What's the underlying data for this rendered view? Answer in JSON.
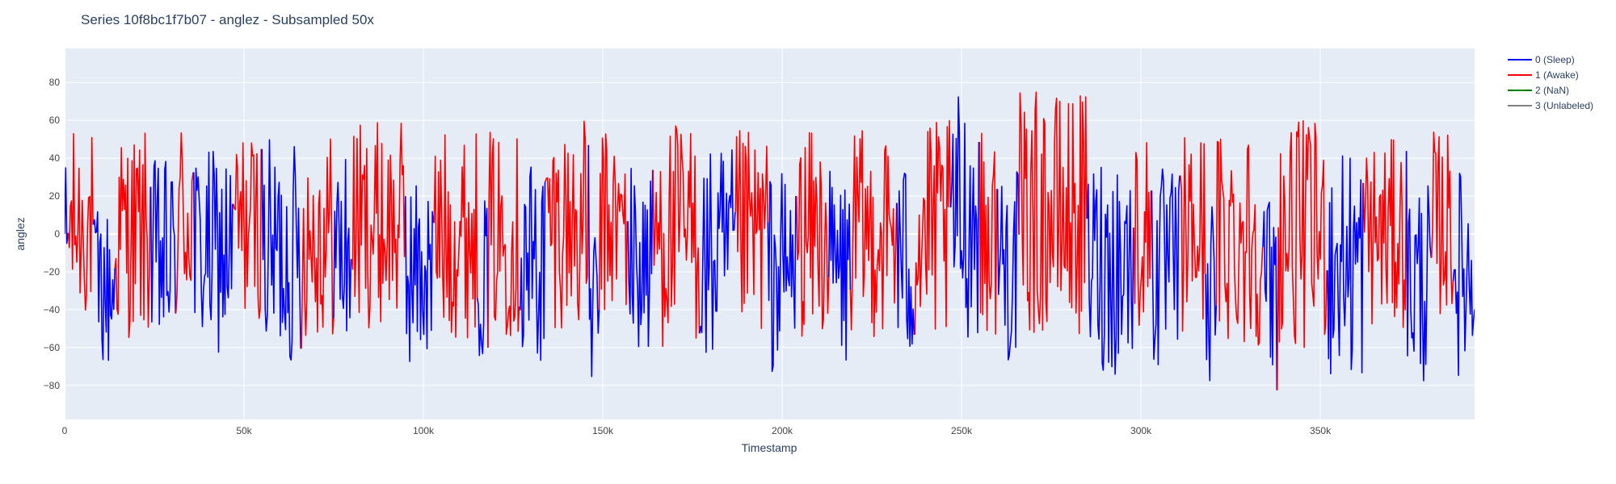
{
  "chart_data": {
    "type": "line",
    "title": "Series 10f8bc1f7b07 - anglez - Subsampled 50x",
    "xlabel": "Timestamp",
    "ylabel": "anglez",
    "xlim": [
      0,
      393000
    ],
    "ylim": [
      -98,
      98
    ],
    "x_ticks": [
      {
        "value": 0,
        "label": "0"
      },
      {
        "value": 50000,
        "label": "50k"
      },
      {
        "value": 100000,
        "label": "100k"
      },
      {
        "value": 150000,
        "label": "150k"
      },
      {
        "value": 200000,
        "label": "200k"
      },
      {
        "value": 250000,
        "label": "250k"
      },
      {
        "value": 300000,
        "label": "300k"
      },
      {
        "value": 350000,
        "label": "350k"
      }
    ],
    "y_ticks": [
      {
        "value": 80,
        "label": "80"
      },
      {
        "value": 60,
        "label": "60"
      },
      {
        "value": 40,
        "label": "40"
      },
      {
        "value": 20,
        "label": "20"
      },
      {
        "value": 0,
        "label": "0"
      },
      {
        "value": -20,
        "label": "−20"
      },
      {
        "value": -40,
        "label": "−40"
      },
      {
        "value": -60,
        "label": "−60"
      },
      {
        "value": -80,
        "label": "−80"
      }
    ],
    "grid": true,
    "legend_position": "top-right",
    "series": [
      {
        "name": "0 (Sleep)",
        "color": "#0000ff"
      },
      {
        "name": "1 (Awake)",
        "color": "#ff0000"
      },
      {
        "name": "2 (NaN)",
        "color": "#008000"
      },
      {
        "name": "3 (Unlabeled)",
        "color": "#808080"
      }
    ],
    "segments": [
      {
        "label": 0,
        "x_start": 0,
        "x_end": 1000,
        "center": -5,
        "amp": 45
      },
      {
        "label": 1,
        "x_start": 1000,
        "x_end": 8000,
        "center": 5,
        "amp": 50
      },
      {
        "label": 0,
        "x_start": 8000,
        "x_end": 14000,
        "center": -30,
        "amp": 45
      },
      {
        "label": 1,
        "x_start": 14000,
        "x_end": 24000,
        "center": 0,
        "amp": 55
      },
      {
        "label": 0,
        "x_start": 24000,
        "x_end": 31000,
        "center": -15,
        "amp": 55
      },
      {
        "label": 1,
        "x_start": 31000,
        "x_end": 36000,
        "center": 10,
        "amp": 55
      },
      {
        "label": 0,
        "x_start": 36000,
        "x_end": 47000,
        "center": -10,
        "amp": 55
      },
      {
        "label": 1,
        "x_start": 47000,
        "x_end": 55000,
        "center": 5,
        "amp": 50
      },
      {
        "label": 0,
        "x_start": 55000,
        "x_end": 66000,
        "center": -10,
        "amp": 60
      },
      {
        "label": 1,
        "x_start": 66000,
        "x_end": 75000,
        "center": 0,
        "amp": 55
      },
      {
        "label": 0,
        "x_start": 75000,
        "x_end": 80000,
        "center": -10,
        "amp": 60
      },
      {
        "label": 1,
        "x_start": 80000,
        "x_end": 95000,
        "center": 5,
        "amp": 55
      },
      {
        "label": 0,
        "x_start": 95000,
        "x_end": 103000,
        "center": -20,
        "amp": 50
      },
      {
        "label": 1,
        "x_start": 103000,
        "x_end": 115000,
        "center": 0,
        "amp": 55
      },
      {
        "label": 0,
        "x_start": 115000,
        "x_end": 118000,
        "center": -20,
        "amp": 45
      },
      {
        "label": 1,
        "x_start": 118000,
        "x_end": 127000,
        "center": 0,
        "amp": 55
      },
      {
        "label": 0,
        "x_start": 127000,
        "x_end": 134000,
        "center": -15,
        "amp": 60
      },
      {
        "label": 1,
        "x_start": 134000,
        "x_end": 146000,
        "center": 5,
        "amp": 55
      },
      {
        "label": 0,
        "x_start": 146000,
        "x_end": 149000,
        "center": -40,
        "amp": 45
      },
      {
        "label": 1,
        "x_start": 149000,
        "x_end": 157000,
        "center": 5,
        "amp": 50
      },
      {
        "label": 0,
        "x_start": 157000,
        "x_end": 164000,
        "center": -15,
        "amp": 55
      },
      {
        "label": 1,
        "x_start": 164000,
        "x_end": 177000,
        "center": 0,
        "amp": 60
      },
      {
        "label": 0,
        "x_start": 177000,
        "x_end": 187000,
        "center": -15,
        "amp": 60
      },
      {
        "label": 1,
        "x_start": 187000,
        "x_end": 196000,
        "center": 0,
        "amp": 55
      },
      {
        "label": 0,
        "x_start": 196000,
        "x_end": 204000,
        "center": -20,
        "amp": 55
      },
      {
        "label": 1,
        "x_start": 204000,
        "x_end": 213000,
        "center": 0,
        "amp": 55
      },
      {
        "label": 0,
        "x_start": 213000,
        "x_end": 219000,
        "center": -20,
        "amp": 55
      },
      {
        "label": 1,
        "x_start": 219000,
        "x_end": 232000,
        "center": 0,
        "amp": 55
      },
      {
        "label": 0,
        "x_start": 232000,
        "x_end": 237000,
        "center": -15,
        "amp": 55
      },
      {
        "label": 1,
        "x_start": 237000,
        "x_end": 247000,
        "center": 0,
        "amp": 60
      },
      {
        "label": 0,
        "x_start": 247000,
        "x_end": 255000,
        "center": 10,
        "amp": 65
      },
      {
        "label": 1,
        "x_start": 255000,
        "x_end": 260000,
        "center": 0,
        "amp": 55
      },
      {
        "label": 0,
        "x_start": 260000,
        "x_end": 266000,
        "center": -15,
        "amp": 55
      },
      {
        "label": 1,
        "x_start": 266000,
        "x_end": 285000,
        "center": 10,
        "amp": 65
      },
      {
        "label": 0,
        "x_start": 285000,
        "x_end": 298000,
        "center": -15,
        "amp": 60
      },
      {
        "label": 1,
        "x_start": 298000,
        "x_end": 303000,
        "center": 0,
        "amp": 55
      },
      {
        "label": 0,
        "x_start": 303000,
        "x_end": 311000,
        "center": -20,
        "amp": 55
      },
      {
        "label": 1,
        "x_start": 311000,
        "x_end": 318000,
        "center": 0,
        "amp": 55
      },
      {
        "label": 0,
        "x_start": 318000,
        "x_end": 321000,
        "center": -30,
        "amp": 50
      },
      {
        "label": 1,
        "x_start": 321000,
        "x_end": 334000,
        "center": 0,
        "amp": 60
      },
      {
        "label": 0,
        "x_start": 334000,
        "x_end": 338000,
        "center": -30,
        "amp": 55
      },
      {
        "label": 1,
        "x_start": 338000,
        "x_end": 352000,
        "center": 0,
        "amp": 60
      },
      {
        "label": 0,
        "x_start": 352000,
        "x_end": 362000,
        "center": -15,
        "amp": 65
      },
      {
        "label": 1,
        "x_start": 362000,
        "x_end": 374000,
        "center": 0,
        "amp": 50
      },
      {
        "label": 0,
        "x_start": 374000,
        "x_end": 381000,
        "center": -25,
        "amp": 55
      },
      {
        "label": 1,
        "x_start": 381000,
        "x_end": 387000,
        "center": 5,
        "amp": 50
      },
      {
        "label": 0,
        "x_start": 387000,
        "x_end": 393000,
        "center": -20,
        "amp": 55
      }
    ]
  }
}
